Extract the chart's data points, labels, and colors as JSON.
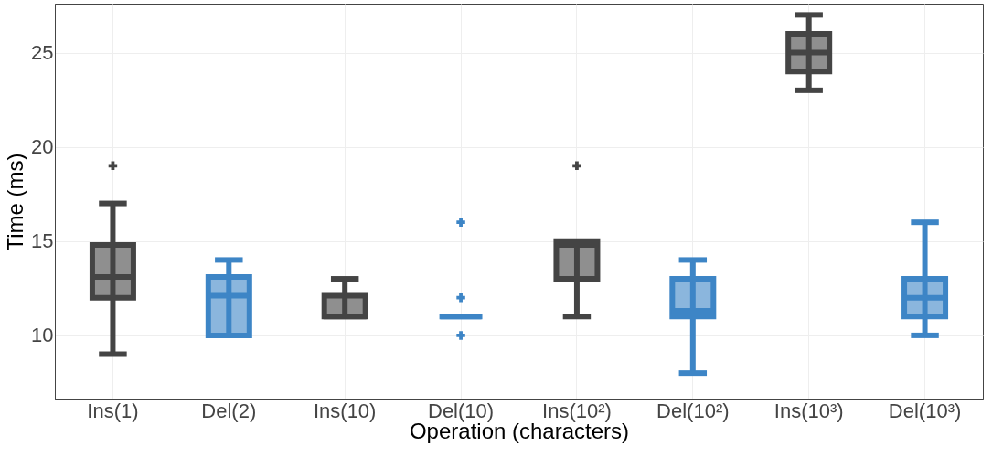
{
  "chart_data": {
    "type": "box",
    "xlabel": "Operation (characters)",
    "ylabel": "Time (ms)",
    "categories": [
      "Ins(1)",
      "Del(2)",
      "Ins(10)",
      "Del(10)",
      "Ins(10²)",
      "Del(10²)",
      "Ins(10³)",
      "Del(10³)"
    ],
    "colors": [
      "#444444",
      "#3d85c6",
      "#444444",
      "#3d85c6",
      "#444444",
      "#3d85c6",
      "#444444",
      "#3d85c6"
    ],
    "boxes": [
      {
        "low": 9,
        "q1": 12,
        "median": 13.1,
        "q3": 14.8,
        "high": 17,
        "outliers": [
          19
        ]
      },
      {
        "low": 10,
        "q1": 10,
        "median": 12.1,
        "q3": 13.1,
        "high": 14
      },
      {
        "low": 11,
        "q1": 11,
        "median": 11,
        "q3": 12.1,
        "high": 13
      },
      {
        "low": 11,
        "q1": 11,
        "median": 11,
        "q3": 11,
        "high": 11,
        "outliers": [
          16,
          12,
          10
        ]
      },
      {
        "low": 11,
        "q1": 13,
        "median": 14.8,
        "q3": 15,
        "high": 15,
        "outliers": [
          19
        ]
      },
      {
        "low": 8,
        "q1": 11,
        "median": 11.3,
        "q3": 13,
        "high": 14
      },
      {
        "low": 23,
        "q1": 24,
        "median": 25,
        "q3": 26,
        "high": 27
      },
      {
        "low": 10,
        "q1": 11,
        "median": 12,
        "q3": 13,
        "high": 16
      }
    ],
    "ylim": [
      6.6,
      27.6
    ],
    "yticks": [
      10,
      15,
      20,
      25
    ],
    "grid": true,
    "marker": "cross"
  }
}
